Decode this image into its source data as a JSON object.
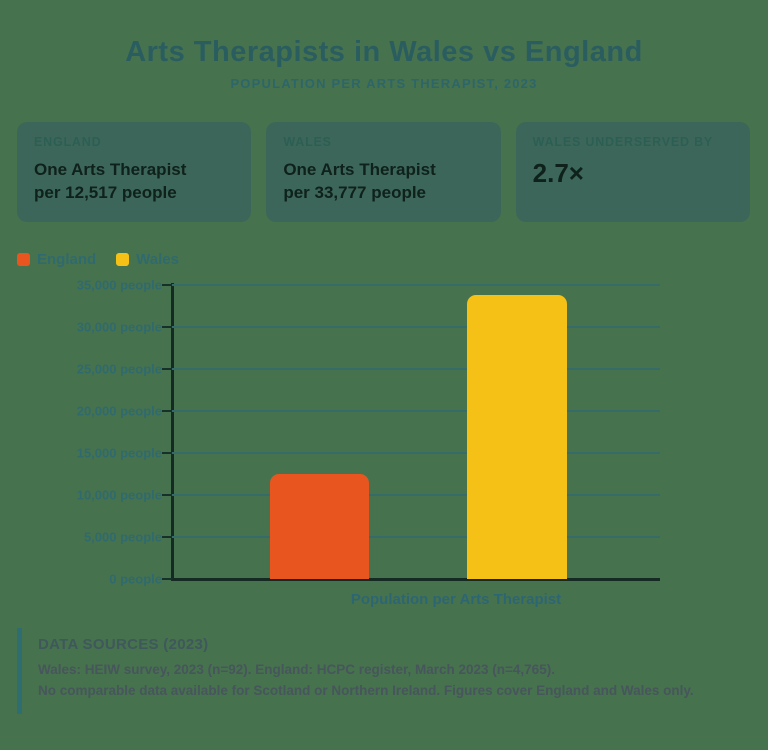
{
  "header": {
    "title": "Arts Therapists in Wales vs England",
    "subtitle": "POPULATION PER ARTS THERAPIST, 2023"
  },
  "cards": [
    {
      "label": "ENGLAND",
      "line1": "One Arts Therapist",
      "line2": "per 12,517 people"
    },
    {
      "label": "WALES",
      "line1": "One Arts Therapist",
      "line2": "per 33,777 people"
    },
    {
      "label": "WALES UNDERSERVED BY",
      "value": "2.7×"
    }
  ],
  "legend": [
    {
      "label": "England",
      "color": "#E8551E"
    },
    {
      "label": "Wales",
      "color": "#F5C117"
    }
  ],
  "chart_data": {
    "type": "bar",
    "categories": [
      "England",
      "Wales"
    ],
    "values": [
      12517,
      33777
    ],
    "series_colors": [
      "#E8551E",
      "#F5C117"
    ],
    "title": "Arts Therapists in Wales vs England",
    "xlabel": "Population per Arts Therapist",
    "ylabel": "",
    "ylim": [
      0,
      35000
    ],
    "ytick_step": 5000,
    "ytick_labels": [
      "35,000 people",
      "30,000 people",
      "25,000 people",
      "20,000 people",
      "15,000 people",
      "10,000 people",
      "5,000 people",
      "0 people"
    ],
    "grid": true,
    "legend_position": "top-left"
  },
  "footer": {
    "heading": "DATA SOURCES (2023)",
    "line1": "Wales: HEIW survey, 2023 (n=92). England: HCPC register, March 2023 (n=4,765).",
    "line2": "No comparable data available for Scotland or Northern Ireland. Figures cover England and Wales only."
  },
  "colors": {
    "background": "#47724E",
    "card_background": "#3D665A",
    "teal_text": "#2A5D60",
    "dark_text": "#0E211B",
    "gridline": "#356B69",
    "axis_line": "#152A23",
    "footer_accent": "#2E6E72",
    "england_bar": "#E8551E",
    "wales_bar": "#F5C117"
  }
}
